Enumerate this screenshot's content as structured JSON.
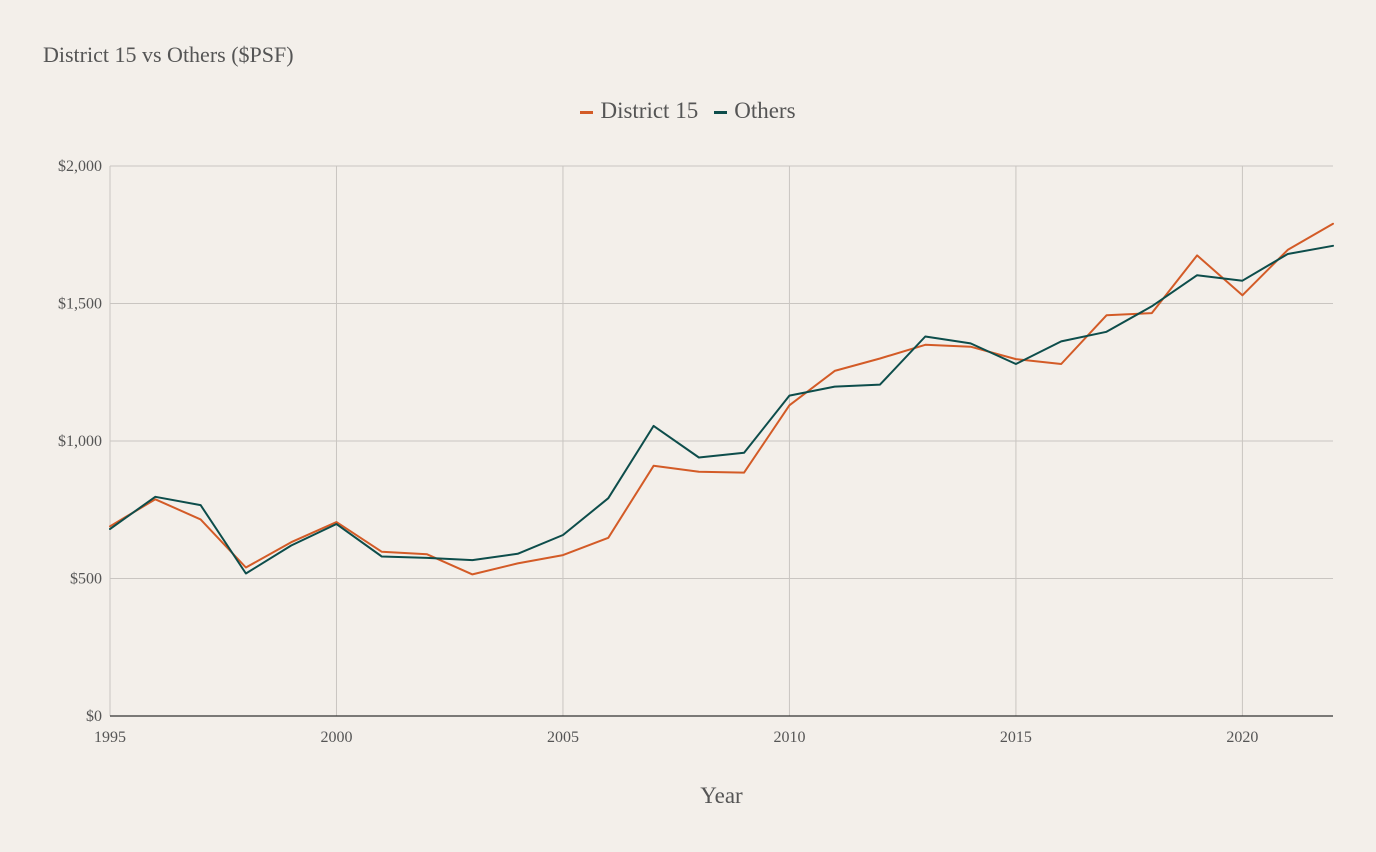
{
  "chart_data": {
    "type": "line",
    "title": "District 15 vs Others ($PSF)",
    "xlabel": "Year",
    "ylabel": "",
    "xlim": [
      1995,
      2022
    ],
    "ylim": [
      0,
      2000
    ],
    "x_ticks": [
      1995,
      2000,
      2005,
      2010,
      2015,
      2020
    ],
    "x_tick_labels": [
      "1995",
      "2000",
      "2005",
      "2010",
      "2015",
      "2020"
    ],
    "y_ticks": [
      0,
      500,
      1000,
      1500,
      2000
    ],
    "y_tick_labels": [
      "$0",
      "$500",
      "$1,000",
      "$1,500",
      "$2,000"
    ],
    "grid": true,
    "legend_position": "top-center",
    "x": [
      1995,
      1996,
      1997,
      1998,
      1999,
      2000,
      2001,
      2002,
      2003,
      2004,
      2005,
      2006,
      2007,
      2008,
      2009,
      2010,
      2011,
      2012,
      2013,
      2014,
      2015,
      2016,
      2017,
      2018,
      2019,
      2020,
      2021,
      2022
    ],
    "series": [
      {
        "name": "District 15",
        "color": "#d35b27",
        "values": [
          690,
          788,
          715,
          540,
          632,
          705,
          597,
          588,
          515,
          555,
          585,
          648,
          910,
          888,
          885,
          1130,
          1255,
          1300,
          1350,
          1343,
          1298,
          1280,
          1457,
          1465,
          1675,
          1530,
          1695,
          1790
        ]
      },
      {
        "name": "Others",
        "color": "#0d4d4b",
        "values": [
          680,
          797,
          767,
          518,
          620,
          698,
          580,
          575,
          567,
          590,
          658,
          792,
          1055,
          940,
          957,
          1165,
          1198,
          1205,
          1380,
          1355,
          1280,
          1362,
          1397,
          1490,
          1603,
          1583,
          1680,
          1710
        ]
      }
    ]
  },
  "colors": {
    "background": "#f3efea",
    "grid": "#c9c5c1",
    "axis": "#333333",
    "text": "#555555"
  }
}
